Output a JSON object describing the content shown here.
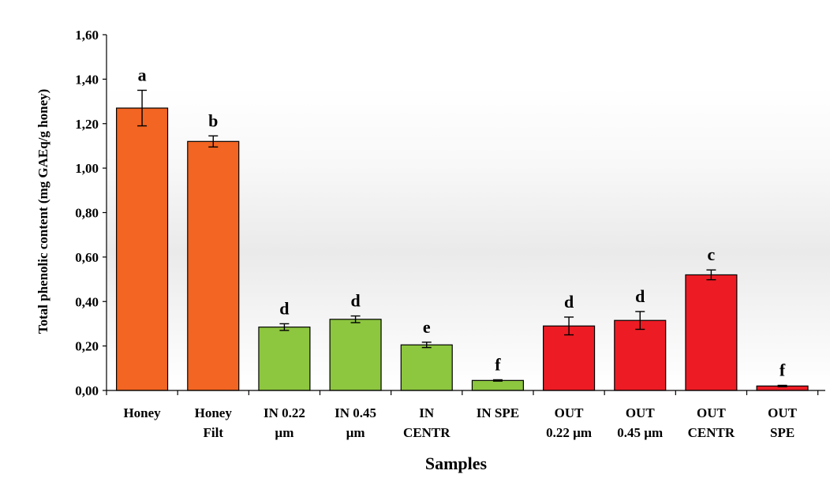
{
  "chart_data": {
    "type": "bar",
    "title": "",
    "xlabel": "Samples",
    "ylabel": "Total phenolic content (mg GAEq/g  honey)",
    "ylim": [
      0,
      1.6
    ],
    "yticks": [
      "0,00",
      "0,20",
      "0,40",
      "0,60",
      "0,80",
      "1,00",
      "1,20",
      "1,40",
      "1,60"
    ],
    "grid": false,
    "categories": [
      [
        "Honey"
      ],
      [
        "Honey",
        "Filt"
      ],
      [
        "IN 0.22",
        "µm"
      ],
      [
        "IN 0.45",
        "µm"
      ],
      [
        "IN",
        "CENTR"
      ],
      [
        "IN SPE"
      ],
      [
        "OUT",
        "0.22 µm"
      ],
      [
        "OUT",
        "0.45 µm"
      ],
      [
        "OUT",
        "CENTR"
      ],
      [
        "OUT",
        "SPE"
      ]
    ],
    "values": [
      1.27,
      1.12,
      0.285,
      0.32,
      0.205,
      0.045,
      0.29,
      0.315,
      0.52,
      0.02
    ],
    "errors": [
      0.08,
      0.025,
      0.015,
      0.015,
      0.012,
      0.003,
      0.04,
      0.04,
      0.022,
      0.003
    ],
    "letters": [
      "a",
      "b",
      "d",
      "d",
      "e",
      "f",
      "d",
      "d",
      "c",
      "f"
    ],
    "colors": [
      "#f26522",
      "#f26522",
      "#8dc63f",
      "#8dc63f",
      "#8dc63f",
      "#8dc63f",
      "#ed1c24",
      "#ed1c24",
      "#ed1c24",
      "#ed1c24"
    ]
  }
}
